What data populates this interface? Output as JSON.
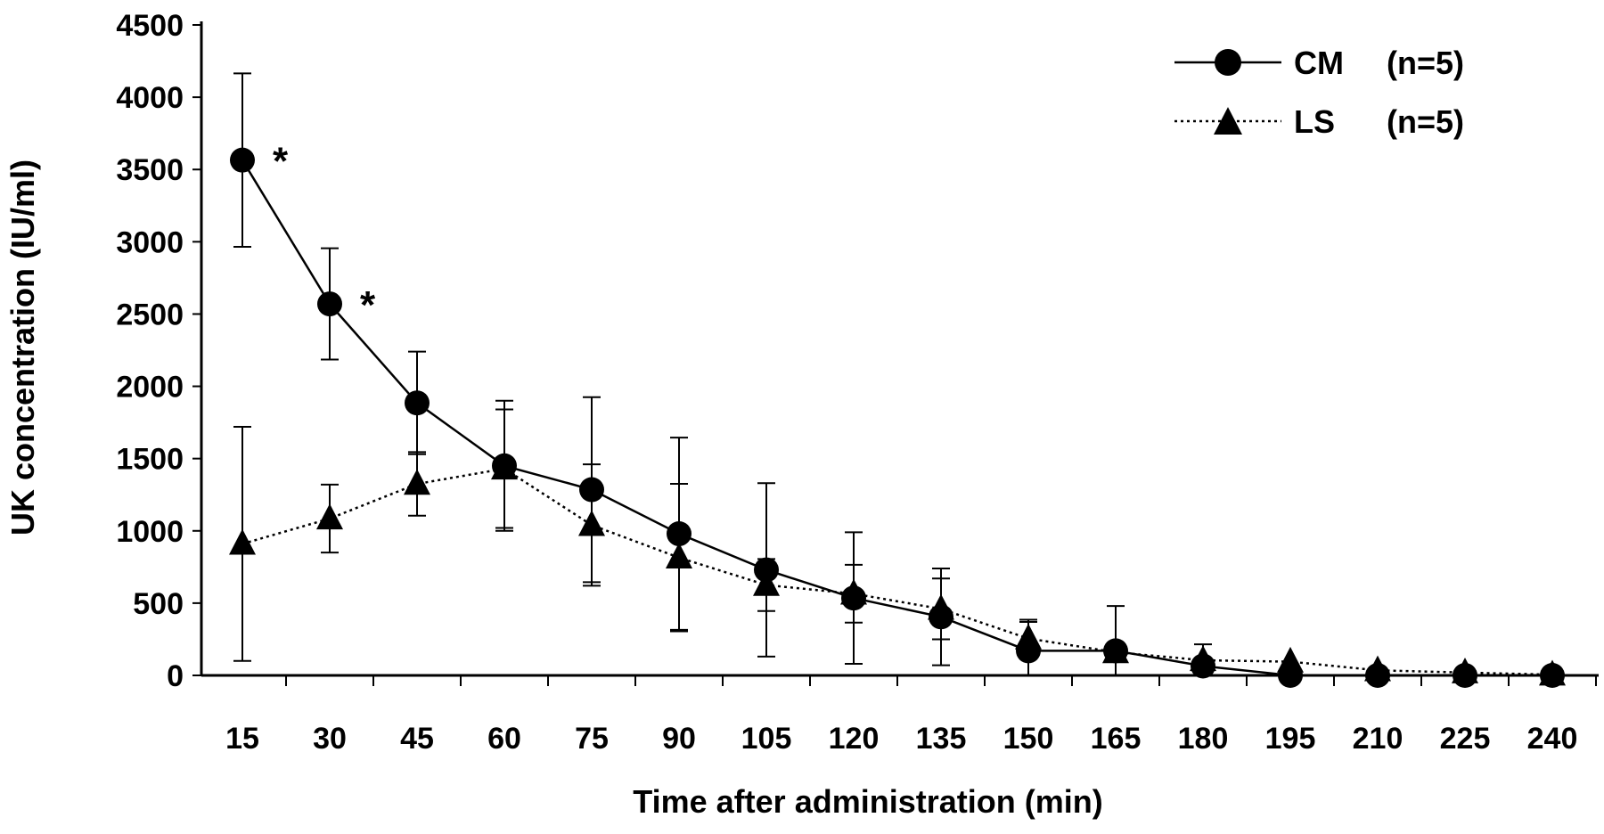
{
  "chart_data": {
    "type": "line",
    "title": "",
    "xlabel": "Time after administration (min)",
    "ylabel": "UK concentration (IU/ml)",
    "categories": [
      "15",
      "30",
      "45",
      "60",
      "75",
      "90",
      "105",
      "120",
      "135",
      "150",
      "165",
      "180",
      "195",
      "210",
      "225",
      "240"
    ],
    "yticks": [
      "0",
      "500",
      "1000",
      "1500",
      "2000",
      "2500",
      "3000",
      "3500",
      "4000",
      "4500"
    ],
    "ylim": [
      0,
      4500
    ],
    "grid": false,
    "legend_position": "top-right",
    "series": [
      {
        "name": "CM",
        "n_label": "(n=5)",
        "marker": "circle",
        "line": "solid",
        "values": [
          3565,
          2570,
          1885,
          1450,
          1285,
          980,
          730,
          535,
          405,
          170,
          170,
          65,
          0,
          0,
          0,
          0
        ],
        "errors": [
          600,
          385,
          355,
          450,
          640,
          665,
          600,
          455,
          335,
          200,
          310,
          150,
          0,
          0,
          0,
          0
        ]
      },
      {
        "name": "LS",
        "n_label": "(n=5)",
        "marker": "triangle",
        "line": "dotted",
        "values": [
          910,
          1085,
          1325,
          1430,
          1040,
          815,
          625,
          565,
          460,
          255,
          160,
          105,
          95,
          35,
          20,
          5
        ],
        "errors": [
          810,
          235,
          220,
          410,
          420,
          510,
          180,
          200,
          210,
          130,
          0,
          0,
          0,
          0,
          0,
          0
        ]
      }
    ],
    "annotations": [
      {
        "text": "*",
        "series": "CM",
        "category": "15"
      },
      {
        "text": "*",
        "series": "CM",
        "category": "30"
      }
    ]
  }
}
